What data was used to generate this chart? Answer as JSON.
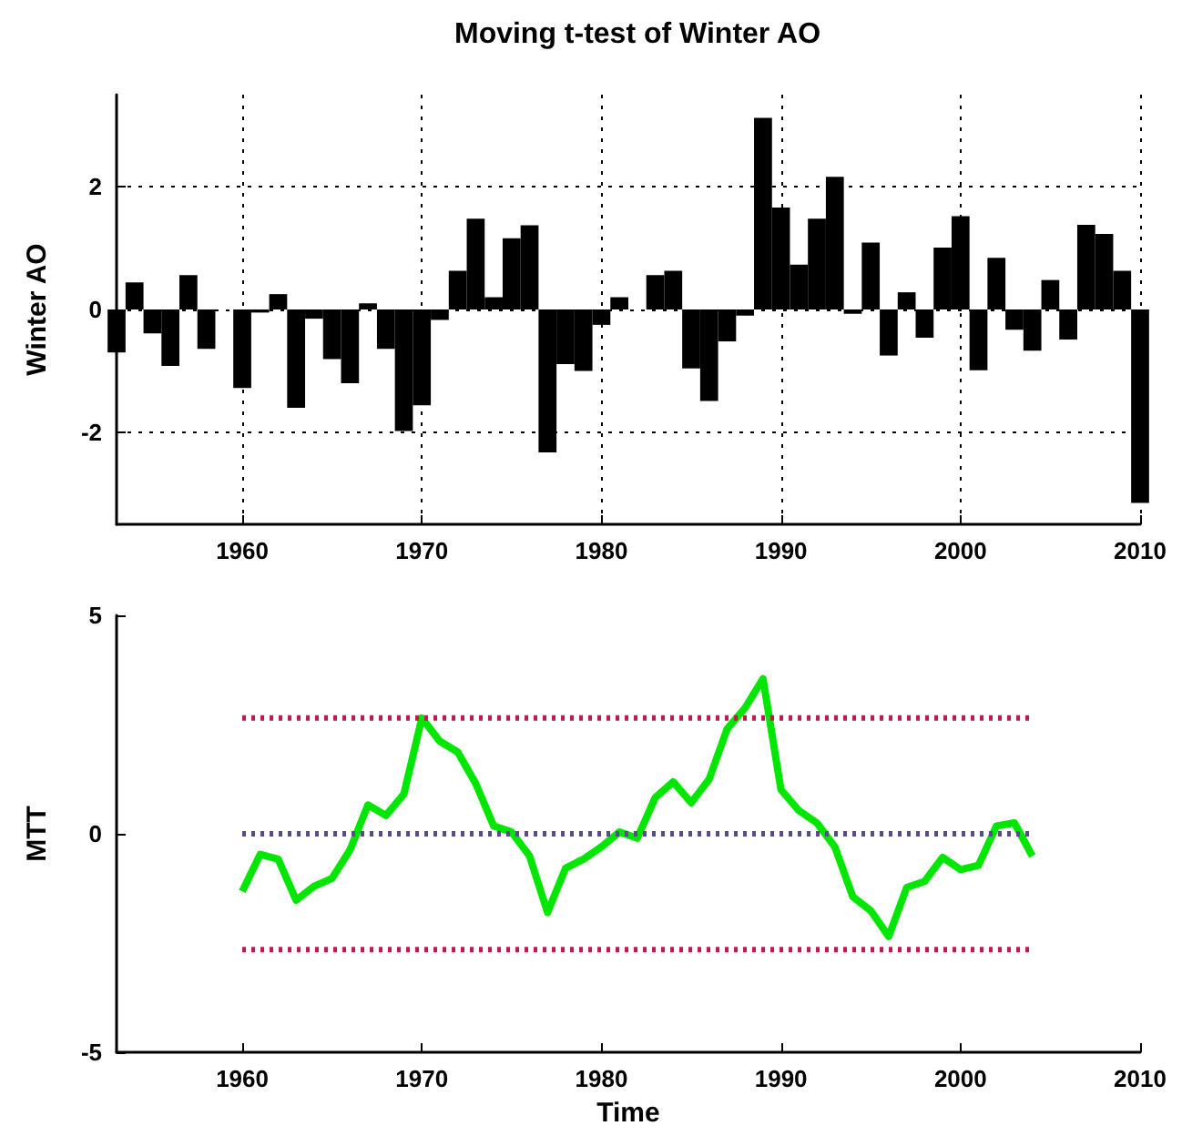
{
  "chart_data": [
    {
      "type": "bar",
      "title": "Moving t-test of Winter AO",
      "ylabel": "Winter AO",
      "color": "#000000",
      "x": [
        1953,
        1954,
        1955,
        1956,
        1957,
        1958,
        1959,
        1960,
        1961,
        1962,
        1963,
        1964,
        1965,
        1966,
        1967,
        1968,
        1969,
        1970,
        1971,
        1972,
        1973,
        1974,
        1975,
        1976,
        1977,
        1978,
        1979,
        1980,
        1981,
        1982,
        1983,
        1984,
        1985,
        1986,
        1987,
        1988,
        1989,
        1990,
        1991,
        1992,
        1993,
        1994,
        1995,
        1996,
        1997,
        1998,
        1999,
        2000,
        2001,
        2002,
        2003,
        2004,
        2005,
        2006,
        2007,
        2008,
        2009,
        2010
      ],
      "values": [
        -0.7,
        0.44,
        -0.39,
        -0.92,
        0.56,
        -0.64,
        0.0,
        -1.28,
        -0.05,
        0.25,
        -1.6,
        -0.15,
        -0.81,
        -1.2,
        0.1,
        -0.64,
        -1.98,
        -1.56,
        -0.17,
        0.63,
        1.48,
        0.2,
        1.16,
        1.37,
        -2.33,
        -0.89,
        -1.0,
        -0.25,
        0.2,
        0.0,
        0.56,
        0.63,
        -0.96,
        -1.49,
        -0.52,
        -0.1,
        3.12,
        1.66,
        0.73,
        1.48,
        2.16,
        -0.07,
        1.09,
        -0.75,
        0.28,
        -0.46,
        1.01,
        1.52,
        -0.99,
        0.84,
        -0.33,
        -0.67,
        0.48,
        -0.49,
        1.38,
        1.23,
        0.63,
        -3.15
      ],
      "xlim": [
        1953,
        2010
      ],
      "xticks": [
        1960,
        1970,
        1980,
        1990,
        2000,
        2010
      ],
      "ylim": [
        -3.5,
        3.5
      ],
      "yticks": [
        -2,
        0,
        2
      ],
      "grid": true
    },
    {
      "type": "line",
      "xlabel": "Time",
      "ylabel": "MTT",
      "xlim": [
        1953,
        2010
      ],
      "xticks": [
        1960,
        1970,
        1980,
        1990,
        2000,
        2010
      ],
      "ylim": [
        -5,
        5
      ],
      "yticks": [
        -5,
        0,
        5
      ],
      "grid": false,
      "series": [
        {
          "color": "#00e600",
          "line_style": "solid",
          "x": [
            1960,
            1961,
            1962,
            1963,
            1964,
            1965,
            1966,
            1967,
            1968,
            1969,
            1970,
            1971,
            1972,
            1973,
            1974,
            1975,
            1976,
            1977,
            1978,
            1979,
            1980,
            1981,
            1982,
            1983,
            1984,
            1985,
            1986,
            1987,
            1988,
            1989,
            1990,
            1991,
            1992,
            1993,
            1994,
            1995,
            1996,
            1997,
            1998,
            1999,
            2000,
            2001,
            2002,
            2003,
            2004
          ],
          "values": [
            -1.32,
            -0.47,
            -0.58,
            -1.52,
            -1.2,
            -1.02,
            -0.37,
            0.66,
            0.42,
            0.91,
            2.65,
            2.12,
            1.87,
            1.15,
            0.18,
            0.04,
            -0.51,
            -1.8,
            -0.79,
            -0.58,
            -0.3,
            0.04,
            -0.1,
            0.83,
            1.19,
            0.71,
            1.25,
            2.4,
            2.88,
            3.55,
            1.01,
            0.53,
            0.25,
            -0.3,
            -1.44,
            -1.76,
            -2.35,
            -1.23,
            -1.09,
            -0.54,
            -0.82,
            -0.72,
            0.18,
            0.25,
            -0.51
          ]
        },
        {
          "color": "#c0184f",
          "line_style": "dotted",
          "x": [
            1960,
            2004
          ],
          "values": [
            2.65,
            2.65
          ]
        },
        {
          "color": "#5a4a8a",
          "line_style": "dotted",
          "x": [
            1960,
            2004
          ],
          "values": [
            0,
            0
          ]
        },
        {
          "color": "#c0184f",
          "line_style": "dotted",
          "x": [
            1960,
            2004
          ],
          "values": [
            -2.65,
            -2.65
          ]
        }
      ]
    }
  ]
}
